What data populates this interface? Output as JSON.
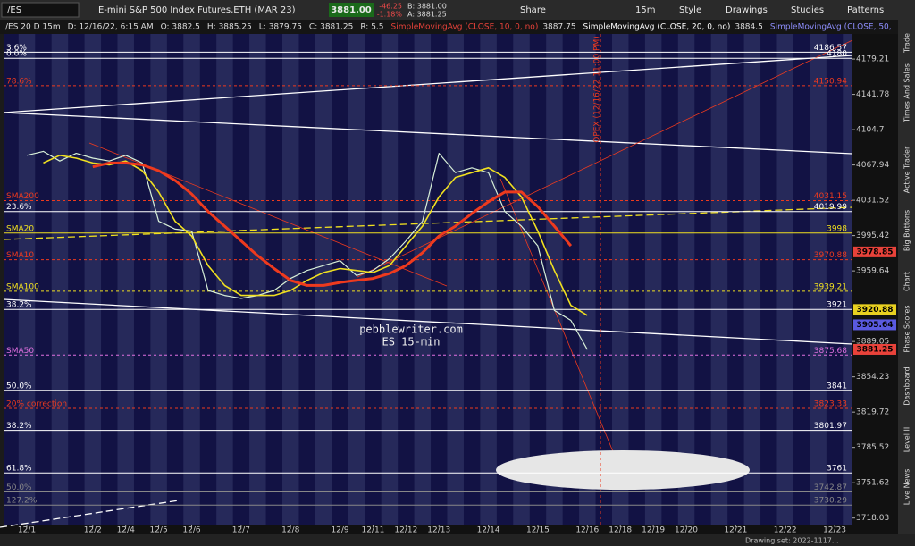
{
  "toolbar": {
    "symbol": "/ES",
    "description": "E-mini S&P 500 Index Futures,ETH (MAR 23)",
    "last": "3881.00",
    "change": "-46.25",
    "change_pct": "-1.18%",
    "bid": "B: 3881.00",
    "ask": "A: 3881.25",
    "share": "Share",
    "timeframe": "15m",
    "style": "Style",
    "drawings": "Drawings",
    "studies": "Studies",
    "patterns": "Patterns"
  },
  "sidebar_tabs": [
    "Trade",
    "Times And Sales",
    "Active Trader",
    "Big Buttons",
    "Chart",
    "Phase Scores",
    "Dashboard",
    "Level II",
    "Live News"
  ],
  "footer": "Drawing set: 2022-1117...",
  "chart_data": {
    "type": "line",
    "header": [
      "/ES 20 D 15m",
      "D: 12/16/22, 6:15 AM",
      "O: 3882.5",
      "H: 3885.25",
      "L: 3879.75",
      "C: 3881.25",
      "R: 5.5"
    ],
    "studies": [
      {
        "text": "SimpleMovingAvg (CLOSE, 10, 0, no)",
        "value": "3887.75",
        "color": "#e8423a"
      },
      {
        "text": "SimpleMovingAvg (CLOSE, 20, 0, no)",
        "value": "3884.5",
        "color": "#ffffff"
      },
      {
        "text": "SimpleMovingAvg (CLOSE, 50,",
        "color": "#8f8fff"
      }
    ],
    "watermark": [
      "pebblewriter.com",
      "ES 15-min"
    ],
    "annotation": "OPEX (12/16/22 11:00 PM)",
    "log": true,
    "ylim": [
      3711,
      4206
    ],
    "yticks": [
      4179.21,
      4141.78,
      4104.7,
      4067.94,
      4031.52,
      3995.42,
      3959.64,
      3889.05,
      3854.23,
      3819.72,
      3785.52,
      3751.62,
      3718.03
    ],
    "categories": [
      "12/1",
      null,
      null,
      null,
      "12/2",
      null,
      "12/4",
      null,
      "12/5",
      null,
      "12/6",
      null,
      null,
      "12/7",
      null,
      null,
      "12/8",
      null,
      null,
      "12/9",
      null,
      "12/11",
      null,
      "12/12",
      null,
      "12/13",
      null,
      null,
      "12/14",
      null,
      null,
      "12/15",
      null,
      null,
      "12/16",
      null,
      "12/18",
      null,
      "12/19",
      null,
      "12/20",
      null,
      null,
      "12/21",
      null,
      null,
      "12/22",
      null,
      null,
      "12/23"
    ],
    "series": [
      {
        "color": "#d8f0d8",
        "width": 1.2,
        "values": [
          4078,
          4082,
          4072,
          4080,
          4075,
          4072,
          4078,
          4070,
          4010,
          4002,
          4000,
          3940,
          3935,
          3932,
          3935,
          3940,
          3952,
          3960,
          3965,
          3970,
          3955,
          3960,
          3972,
          3990,
          4010,
          4080,
          4060,
          4065,
          4060,
          4020,
          4005,
          3985,
          3920,
          3910,
          3881,
          null,
          null,
          null,
          null,
          null,
          null,
          null,
          null,
          null,
          null,
          null,
          null,
          null,
          null,
          null
        ]
      },
      {
        "color": "#f0e020",
        "width": 1.6,
        "values": [
          null,
          4070,
          4078,
          4075,
          4070,
          4068,
          4072,
          4062,
          4040,
          4010,
          3995,
          3965,
          3945,
          3935,
          3935,
          3935,
          3940,
          3950,
          3958,
          3962,
          3960,
          3958,
          3965,
          3985,
          4005,
          4035,
          4055,
          4060,
          4065,
          4055,
          4035,
          4000,
          3960,
          3925,
          3915,
          null,
          null,
          null,
          null,
          null,
          null,
          null,
          null,
          null,
          null,
          null,
          null,
          null,
          null,
          null
        ]
      },
      {
        "color": "#ee3a1e",
        "width": 3,
        "values": [
          null,
          null,
          null,
          null,
          4066,
          4070,
          4070,
          4068,
          4062,
          4052,
          4038,
          4020,
          4005,
          3990,
          3975,
          3962,
          3950,
          3945,
          3945,
          3948,
          3950,
          3952,
          3957,
          3965,
          3978,
          3995,
          4005,
          4018,
          4030,
          4040,
          4040,
          4025,
          4005,
          3985,
          null,
          null,
          null,
          null,
          null,
          null,
          null,
          null,
          null,
          null,
          null,
          null,
          null,
          null,
          null,
          null
        ]
      }
    ],
    "levels": [
      {
        "value": 4186.57,
        "color": "#ffffff",
        "note": "3.6%"
      },
      {
        "value": 4180,
        "color": "#ffffff",
        "note": "0.0%"
      },
      {
        "value": 4150.94,
        "color": "#ee3a1e",
        "note": "78.6%",
        "dash": true
      },
      {
        "value": 4031.15,
        "color": "#ee3a1e",
        "note": "SMA200",
        "dash": true
      },
      {
        "value": 4019.99,
        "color": "#ffffff",
        "note": "23.6%"
      },
      {
        "value": 3998,
        "color": "#f0e020",
        "note": "SMA20"
      },
      {
        "value": 3970.88,
        "color": "#ee3a1e",
        "note": "SMA10",
        "dash": true
      },
      {
        "value": 3939.21,
        "color": "#f0e020",
        "note": "SMA100",
        "dash": true
      },
      {
        "value": 3921,
        "color": "#ffffff",
        "note": "38.2%"
      },
      {
        "value": 3875.68,
        "color": "#e070e0",
        "note": "SMA50",
        "dash": true
      },
      {
        "value": 3841,
        "color": "#ffffff",
        "note": "50.0%"
      },
      {
        "value": 3823.33,
        "color": "#ee3a1e",
        "note": "20% correction",
        "dash": true
      },
      {
        "value": 3801.97,
        "color": "#ffffff",
        "note": "38.2%"
      },
      {
        "value": 3761,
        "color": "#ffffff",
        "note": "61.8%"
      },
      {
        "value": 3742.87,
        "color": "#888888",
        "note": "50.0%"
      },
      {
        "value": 3730.29,
        "color": "#888888",
        "note": "127.2%"
      }
    ],
    "badges": [
      {
        "value": 3978.85,
        "color": "#e8423a"
      },
      {
        "value": 3920.88,
        "color": "#e8d020"
      },
      {
        "value": 3905.64,
        "color": "#5a5ae0"
      },
      {
        "value": 3881.25,
        "color": "#e8423a"
      }
    ]
  }
}
